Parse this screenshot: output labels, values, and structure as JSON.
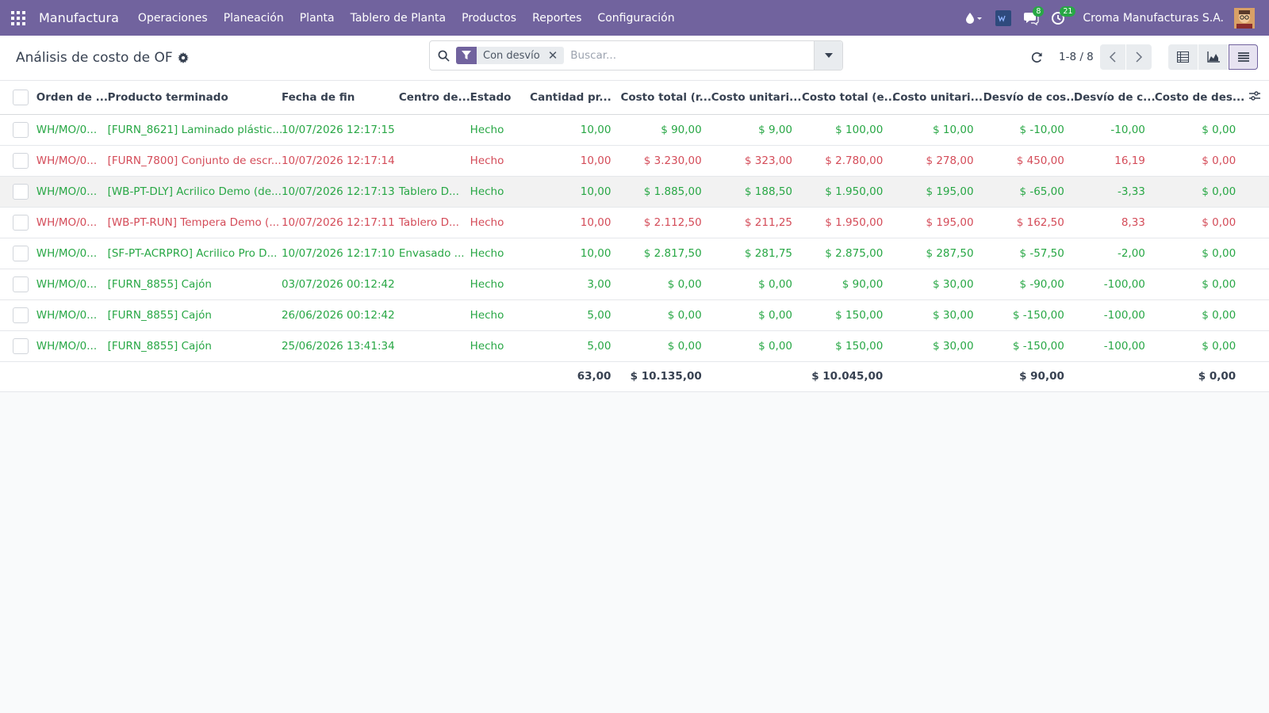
{
  "navbar": {
    "app_name": "Manufactura",
    "menu": [
      "Operaciones",
      "Planeación",
      "Planta",
      "Tablero de Planta",
      "Productos",
      "Reportes",
      "Configuración"
    ],
    "messages_count": "8",
    "activities_count": "21",
    "company": "Croma Manufacturas S.A.",
    "bg_color": "#71639e"
  },
  "control": {
    "title": "Análisis de costo de OF",
    "facet_label": "Con desvío",
    "search_placeholder": "Buscar...",
    "pager": "1-8 / 8"
  },
  "table": {
    "columns": [
      "Orden de ...",
      "Producto terminado",
      "Fecha de fin",
      "Centro de...",
      "Estado",
      "Cantidad pr...",
      "Costo total (r...",
      "Costo unitari...",
      "Costo total (e...",
      "Costo unitari...",
      "Desvío de cos...",
      "Desvío de c...",
      "Costo de des..."
    ],
    "rows": [
      {
        "color": "green",
        "order": "WH/MO/0...",
        "product": "[FURN_8621] Laminado plástic...",
        "date": "10/07/2026 12:17:15",
        "center": "",
        "state": "Hecho",
        "qty": "10,00",
        "total_real": "$ 90,00",
        "unit_real": "$ 9,00",
        "total_exp": "$ 100,00",
        "unit_exp": "$ 10,00",
        "dev_cost": "$ -10,00",
        "dev_pct": "-10,00",
        "cost_dev": "$ 0,00"
      },
      {
        "color": "red",
        "order": "WH/MO/0...",
        "product": "[FURN_7800] Conjunto de escr...",
        "date": "10/07/2026 12:17:14",
        "center": "",
        "state": "Hecho",
        "qty": "10,00",
        "total_real": "$ 3.230,00",
        "unit_real": "$ 323,00",
        "total_exp": "$ 2.780,00",
        "unit_exp": "$ 278,00",
        "dev_cost": "$ 450,00",
        "dev_pct": "16,19",
        "cost_dev": "$ 0,00"
      },
      {
        "color": "green",
        "order": "WH/MO/0...",
        "product": "[WB-PT-DLY] Acrilico Demo (de...",
        "date": "10/07/2026 12:17:13",
        "center": "Tablero D...",
        "state": "Hecho",
        "qty": "10,00",
        "total_real": "$ 1.885,00",
        "unit_real": "$ 188,50",
        "total_exp": "$ 1.950,00",
        "unit_exp": "$ 195,00",
        "dev_cost": "$ -65,00",
        "dev_pct": "-3,33",
        "cost_dev": "$ 0,00"
      },
      {
        "color": "red",
        "order": "WH/MO/0...",
        "product": "[WB-PT-RUN] Tempera Demo (...",
        "date": "10/07/2026 12:17:11",
        "center": "Tablero D...",
        "state": "Hecho",
        "qty": "10,00",
        "total_real": "$ 2.112,50",
        "unit_real": "$ 211,25",
        "total_exp": "$ 1.950,00",
        "unit_exp": "$ 195,00",
        "dev_cost": "$ 162,50",
        "dev_pct": "8,33",
        "cost_dev": "$ 0,00"
      },
      {
        "color": "green",
        "order": "WH/MO/0...",
        "product": "[SF-PT-ACRPRO] Acrilico Pro D...",
        "date": "10/07/2026 12:17:10",
        "center": "Envasado ...",
        "state": "Hecho",
        "qty": "10,00",
        "total_real": "$ 2.817,50",
        "unit_real": "$ 281,75",
        "total_exp": "$ 2.875,00",
        "unit_exp": "$ 287,50",
        "dev_cost": "$ -57,50",
        "dev_pct": "-2,00",
        "cost_dev": "$ 0,00"
      },
      {
        "color": "green",
        "order": "WH/MO/0...",
        "product": "[FURN_8855] Cajón",
        "date": "03/07/2026 00:12:42",
        "center": "",
        "state": "Hecho",
        "qty": "3,00",
        "total_real": "$ 0,00",
        "unit_real": "$ 0,00",
        "total_exp": "$ 90,00",
        "unit_exp": "$ 30,00",
        "dev_cost": "$ -90,00",
        "dev_pct": "-100,00",
        "cost_dev": "$ 0,00"
      },
      {
        "color": "green",
        "order": "WH/MO/0...",
        "product": "[FURN_8855] Cajón",
        "date": "26/06/2026 00:12:42",
        "center": "",
        "state": "Hecho",
        "qty": "5,00",
        "total_real": "$ 0,00",
        "unit_real": "$ 0,00",
        "total_exp": "$ 150,00",
        "unit_exp": "$ 30,00",
        "dev_cost": "$ -150,00",
        "dev_pct": "-100,00",
        "cost_dev": "$ 0,00"
      },
      {
        "color": "green",
        "order": "WH/MO/0...",
        "product": "[FURN_8855] Cajón",
        "date": "25/06/2026 13:41:34",
        "center": "",
        "state": "Hecho",
        "qty": "5,00",
        "total_real": "$ 0,00",
        "unit_real": "$ 0,00",
        "total_exp": "$ 150,00",
        "unit_exp": "$ 30,00",
        "dev_cost": "$ -150,00",
        "dev_pct": "-100,00",
        "cost_dev": "$ 0,00"
      }
    ],
    "totals": {
      "qty": "63,00",
      "total_real": "$ 10.135,00",
      "total_exp": "$ 10.045,00",
      "dev_cost": "$ 90,00",
      "cost_dev": "$ 0,00"
    }
  },
  "colors": {
    "green": "#28a745",
    "red": "#d44c59",
    "accent": "#71639e"
  }
}
